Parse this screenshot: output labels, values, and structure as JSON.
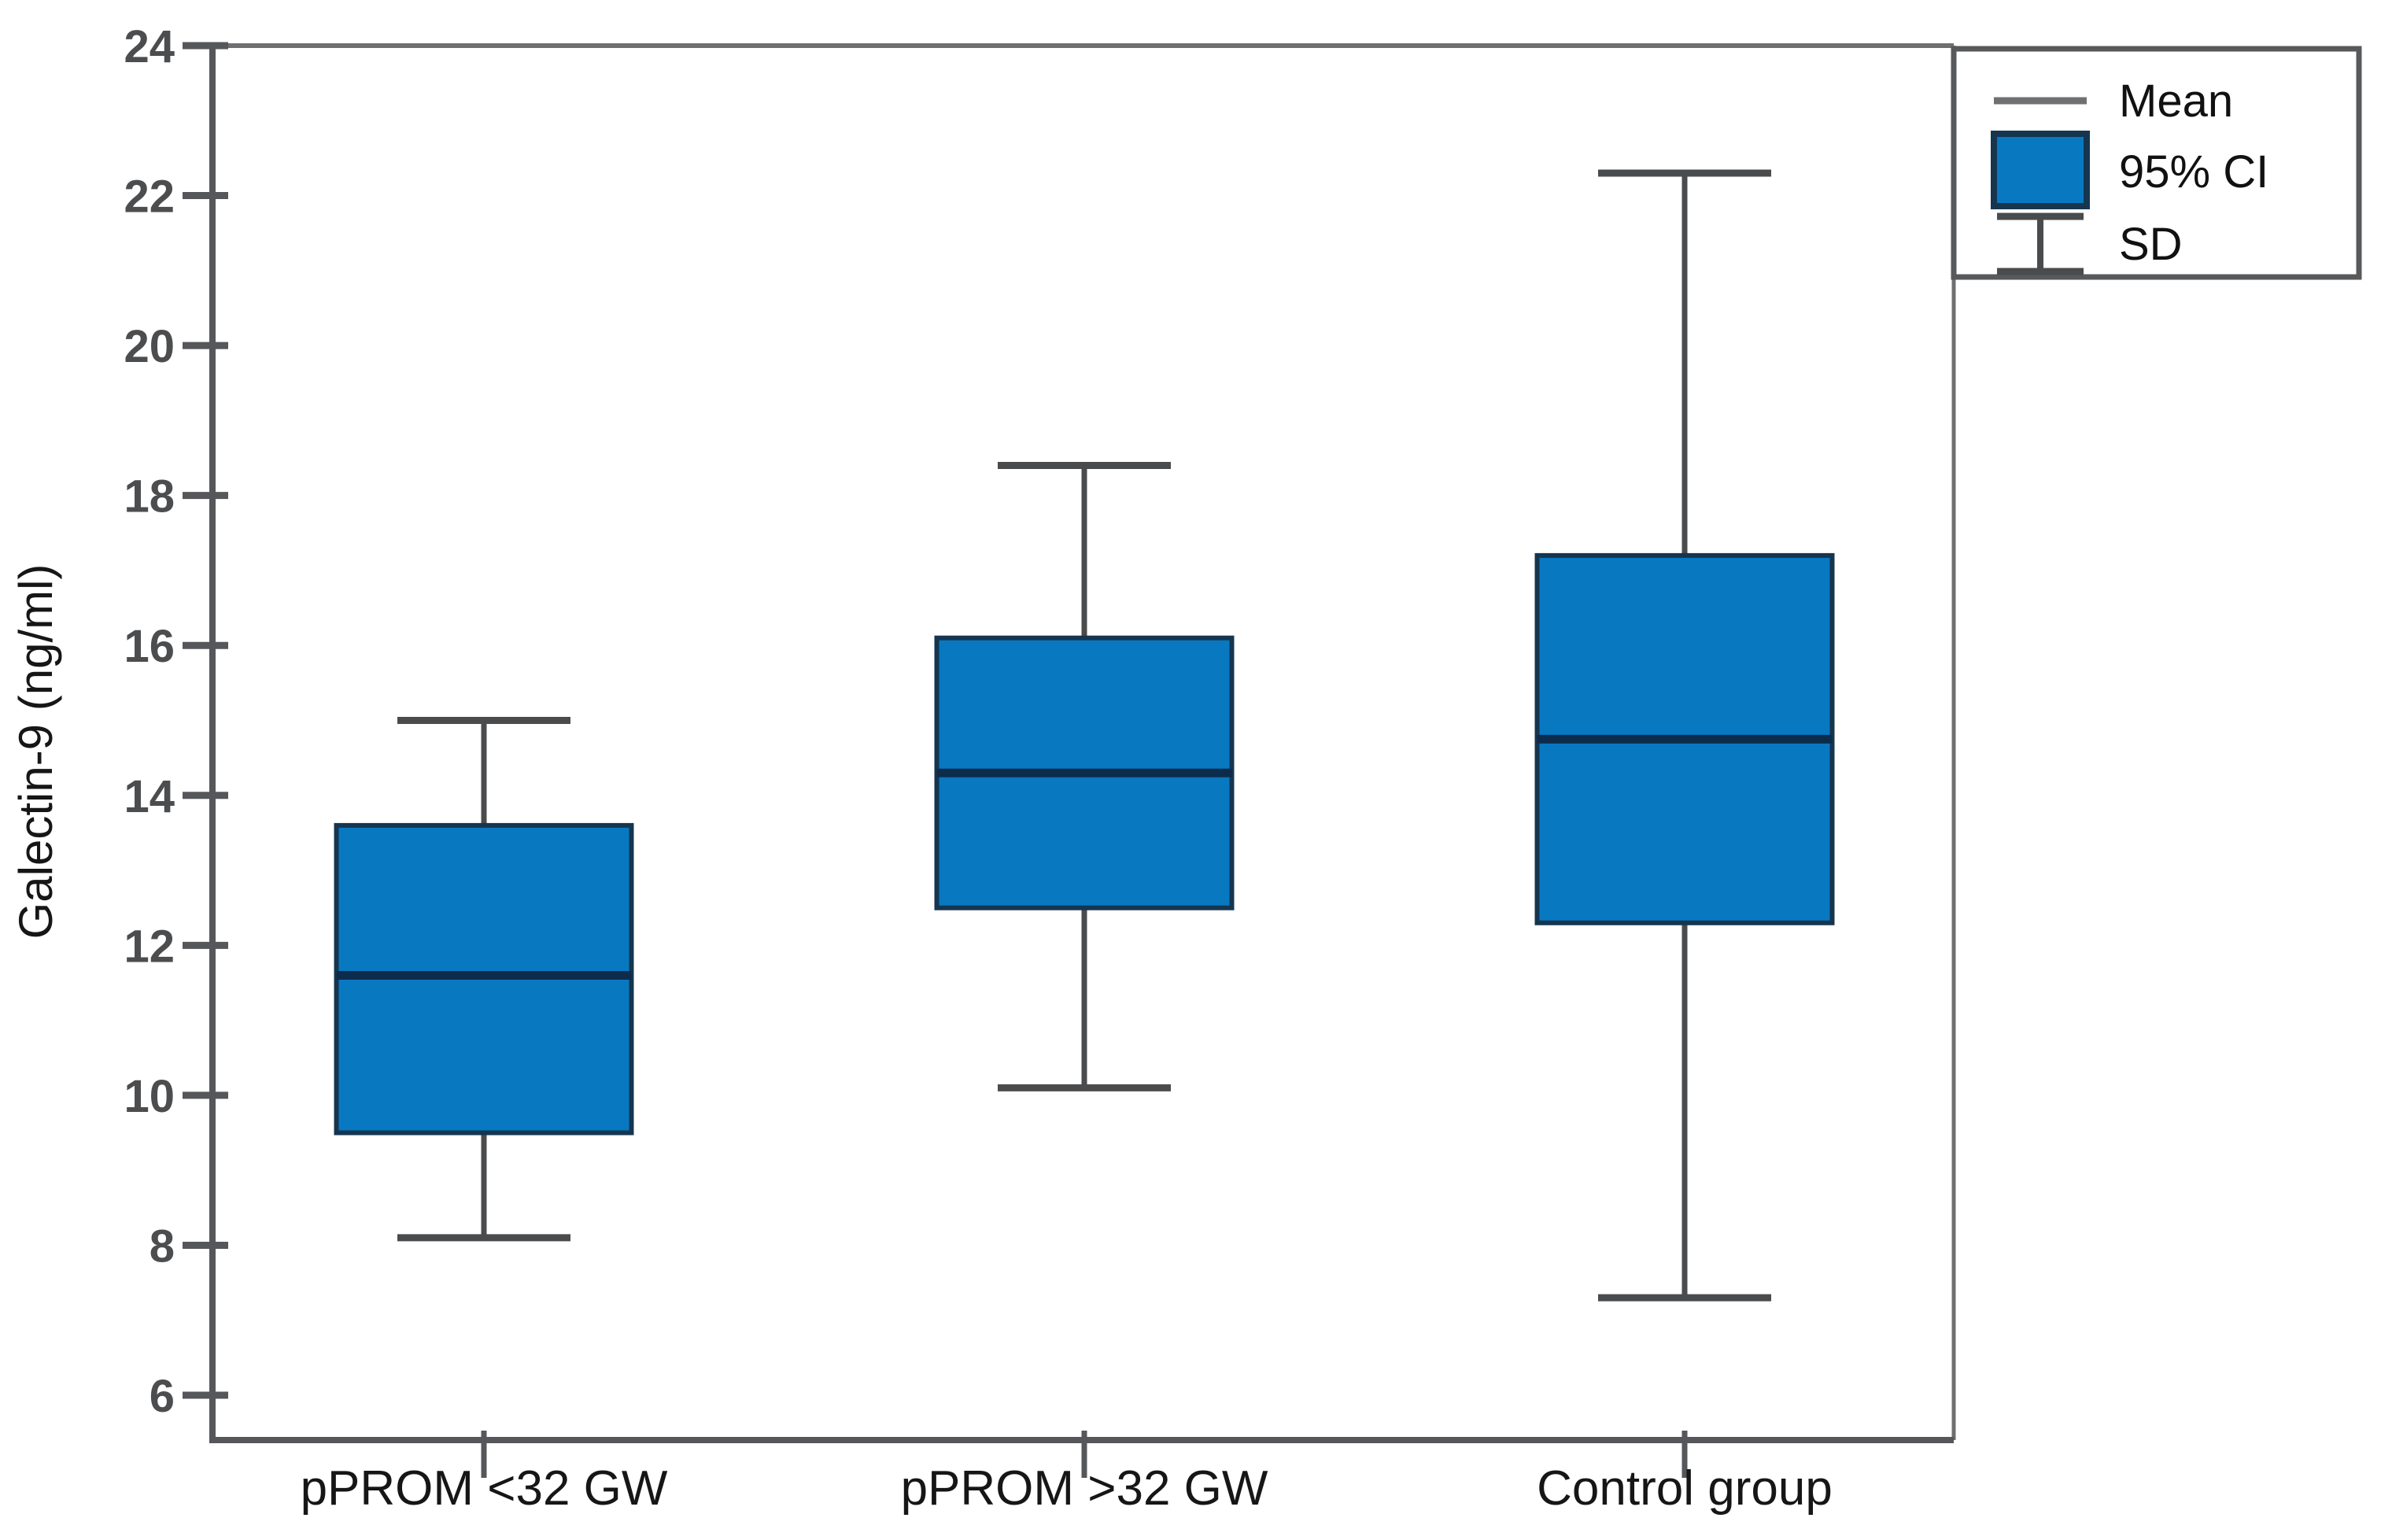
{
  "figure": {
    "background": "#ffffff"
  },
  "chart_data": {
    "type": "box",
    "variant": "mean-ci-sd",
    "title": "",
    "xlabel": "",
    "ylabel": "Galectin-9 (ng/ml)",
    "grid": false,
    "categories": [
      "pPROM <32 GW",
      "pPROM >32 GW",
      "Control group"
    ],
    "y_axis": {
      "tick_min": 6,
      "tick_max": 24,
      "tick_step": 2,
      "tick_labels": [
        "6",
        "8",
        "10",
        "12",
        "14",
        "16",
        "18",
        "20",
        "22",
        "24"
      ]
    },
    "series": [
      {
        "category": "pPROM <32 GW",
        "mean": 11.6,
        "ci95_low": 9.5,
        "ci95_high": 13.6,
        "sd_low": 8.1,
        "sd_high": 15.0
      },
      {
        "category": "pPROM >32 GW",
        "mean": 14.3,
        "ci95_low": 12.5,
        "ci95_high": 16.1,
        "sd_low": 10.1,
        "sd_high": 18.4
      },
      {
        "category": "Control group",
        "mean": 14.75,
        "ci95_low": 12.3,
        "ci95_high": 17.2,
        "sd_low": 7.3,
        "sd_high": 22.3
      }
    ],
    "legend": {
      "position": "top-right-outside",
      "items": [
        {
          "symbol": "mean-line",
          "label": "Mean"
        },
        {
          "symbol": "ci-box",
          "label": "95% CI"
        },
        {
          "symbol": "sd-errorbar",
          "label": "SD"
        }
      ]
    },
    "colors": {
      "background": "#ffffff",
      "box_fill": "#0878c1",
      "box_border": "#16354f",
      "mean_line": "#0d2c4b",
      "whisker": "#4a4b4d",
      "axis": "#56575a",
      "frame": "#6e6f71",
      "tick_label": "#4c4d4f",
      "category_label": "#161616",
      "legend_border": "#58595b",
      "legend_text": "#111111",
      "legend_mean_swatch": "#6f7072"
    }
  }
}
